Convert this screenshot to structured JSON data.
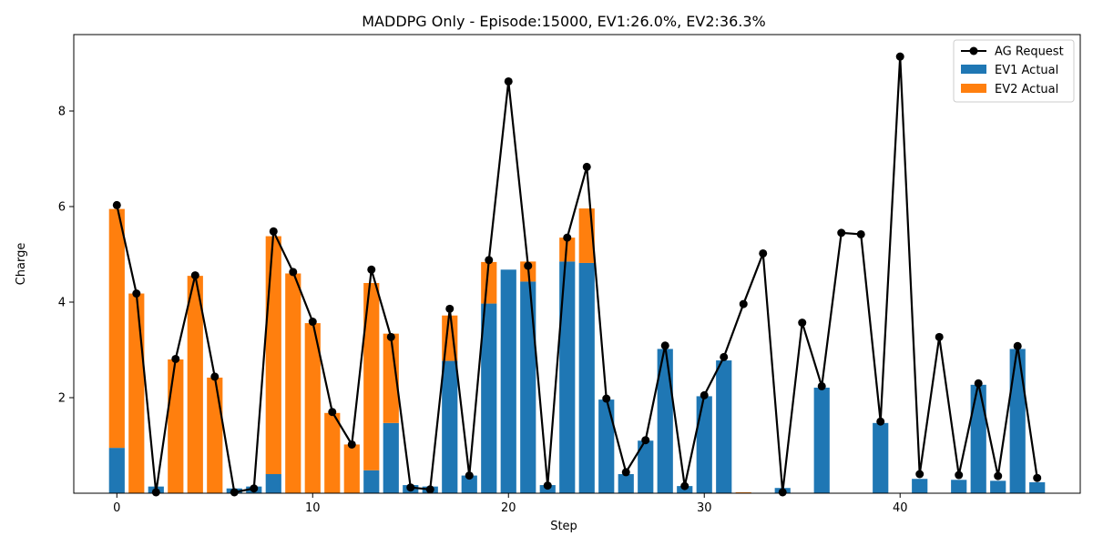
{
  "chart_data": {
    "type": "bar",
    "title": "MADDPG Only - Episode:15000, EV1:26.0%, EV2:36.3%",
    "xlabel": "Step",
    "ylabel": "Charge",
    "xlim": [
      -2.2,
      49.2
    ],
    "ylim": [
      0,
      9.6
    ],
    "xticks": [
      0,
      10,
      20,
      30,
      40
    ],
    "yticks": [
      2,
      4,
      6,
      8
    ],
    "legend_position": "top-right",
    "x": [
      0,
      1,
      2,
      3,
      4,
      5,
      6,
      7,
      8,
      9,
      10,
      11,
      12,
      13,
      14,
      15,
      16,
      17,
      18,
      19,
      20,
      21,
      22,
      23,
      24,
      25,
      26,
      27,
      28,
      29,
      30,
      31,
      32,
      33,
      34,
      35,
      36,
      37,
      38,
      39,
      40,
      41,
      42,
      43,
      44,
      45,
      46,
      47
    ],
    "series": [
      {
        "name": "EV1 Actual",
        "kind": "bar",
        "color": "#1f77b4",
        "values": [
          0.95,
          0,
          0.14,
          0,
          0,
          0,
          0.1,
          0.14,
          0.4,
          0,
          0,
          0,
          0,
          0.48,
          1.47,
          0.17,
          0.14,
          2.77,
          0.37,
          3.97,
          4.68,
          4.43,
          0.17,
          4.85,
          4.82,
          1.96,
          0.4,
          1.1,
          3.02,
          0.15,
          2.03,
          2.78,
          0,
          0,
          0.11,
          0,
          2.21,
          0,
          0,
          1.47,
          0,
          0.3,
          0,
          0.28,
          2.27,
          0.26,
          3.02,
          0.23
        ]
      },
      {
        "name": "EV2 Actual",
        "kind": "bar",
        "color": "#ff7f0e",
        "values": [
          5.0,
          4.18,
          0,
          2.8,
          4.55,
          2.42,
          0,
          0,
          4.98,
          4.6,
          3.56,
          1.68,
          1.02,
          3.92,
          1.87,
          0,
          0,
          0.95,
          0,
          0.87,
          0,
          0.42,
          0,
          0.5,
          1.14,
          0,
          0,
          0,
          0,
          0,
          0,
          0,
          0.02,
          0,
          0,
          0,
          0,
          0,
          0,
          0,
          0,
          0,
          0,
          0,
          0,
          0,
          0,
          0
        ]
      },
      {
        "name": "AG Request",
        "kind": "line",
        "color": "#000000",
        "values": [
          6.03,
          4.18,
          0.02,
          2.81,
          4.56,
          2.44,
          0.02,
          0.1,
          5.48,
          4.63,
          3.59,
          1.7,
          1.02,
          4.68,
          3.27,
          0.12,
          0.08,
          3.86,
          0.37,
          4.88,
          8.62,
          4.76,
          0.16,
          5.35,
          6.83,
          1.98,
          0.44,
          1.11,
          3.09,
          0.15,
          2.05,
          2.85,
          3.96,
          5.02,
          0.02,
          3.57,
          2.24,
          5.45,
          5.42,
          1.5,
          9.14,
          0.4,
          3.27,
          0.38,
          2.3,
          0.36,
          3.08,
          0.32
        ]
      }
    ],
    "legend": [
      "AG Request",
      "EV1 Actual",
      "EV2 Actual"
    ]
  }
}
